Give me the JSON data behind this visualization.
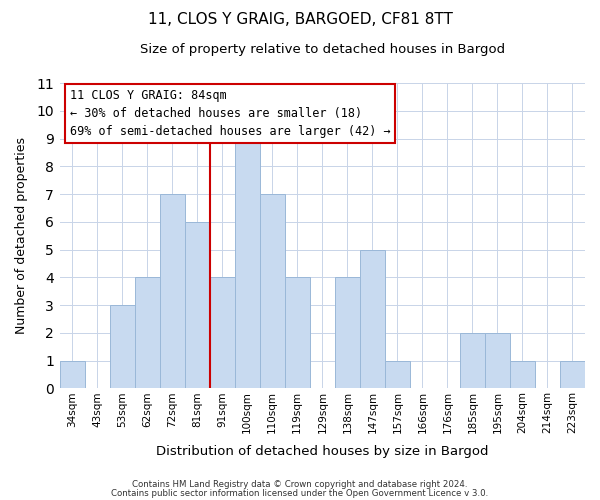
{
  "title": "11, CLOS Y GRAIG, BARGOED, CF81 8TT",
  "subtitle": "Size of property relative to detached houses in Bargod",
  "xlabel": "Distribution of detached houses by size in Bargod",
  "ylabel": "Number of detached properties",
  "footer_line1": "Contains HM Land Registry data © Crown copyright and database right 2024.",
  "footer_line2": "Contains public sector information licensed under the Open Government Licence v 3.0.",
  "categories": [
    "34sqm",
    "43sqm",
    "53sqm",
    "62sqm",
    "72sqm",
    "81sqm",
    "91sqm",
    "100sqm",
    "110sqm",
    "119sqm",
    "129sqm",
    "138sqm",
    "147sqm",
    "157sqm",
    "166sqm",
    "176sqm",
    "185sqm",
    "195sqm",
    "204sqm",
    "214sqm",
    "223sqm"
  ],
  "values": [
    1,
    0,
    3,
    4,
    7,
    6,
    4,
    9,
    7,
    4,
    0,
    4,
    5,
    1,
    0,
    0,
    2,
    2,
    1,
    0,
    1
  ],
  "bar_color": "#c8daf0",
  "bar_edge_color": "#9ab8d8",
  "vline_x_index": 5,
  "vline_color": "#cc0000",
  "annotation_title": "11 CLOS Y GRAIG: 84sqm",
  "annotation_line1": "← 30% of detached houses are smaller (18)",
  "annotation_line2": "69% of semi-detached houses are larger (42) →",
  "ylim": [
    0,
    11
  ],
  "yticks": [
    0,
    1,
    2,
    3,
    4,
    5,
    6,
    7,
    8,
    9,
    10,
    11
  ]
}
